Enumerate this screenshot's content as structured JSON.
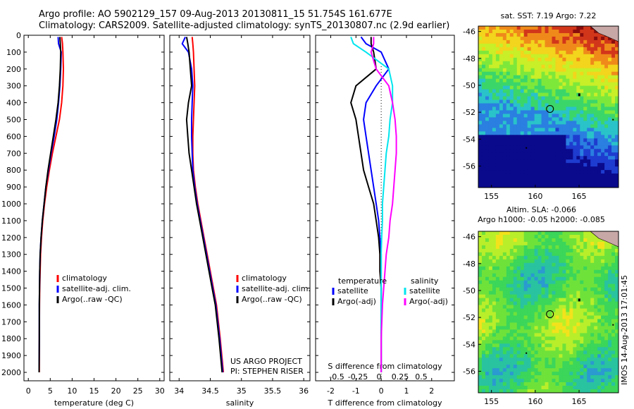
{
  "header": {
    "line1": "Argo profile: AO 5902129_157 09-Aug-2013 20130811_15 51.754S 161.677E",
    "line2": "Climatology: CARS2009. Satellite-adjusted climatology: synTS_20130807.nc (2.9d earlier)"
  },
  "colors": {
    "climatology": "#ff0000",
    "satellite": "#0000ff",
    "argo": "#000000",
    "sal_satellite": "#00e5ee",
    "sal_argo": "#ff00ff",
    "land": "#c8a7a7"
  },
  "side_text": "IMOS 14-Aug-2013 17:01:45",
  "credit": {
    "line1": "US ARGO PROJECT",
    "line2": "PI: STEPHEN RISER"
  },
  "chart_data": [
    {
      "type": "line",
      "xlabel": "temperature (deg C)",
      "ylabel": "",
      "xlim": [
        -1,
        31
      ],
      "ylim": [
        2050,
        0
      ],
      "xticks": [
        "0",
        "5",
        "10",
        "15",
        "20",
        "25",
        "30"
      ],
      "yticks": [
        "0",
        "100",
        "200",
        "300",
        "400",
        "500",
        "600",
        "700",
        "800",
        "900",
        "1000",
        "1100",
        "1200",
        "1300",
        "1400",
        "1500",
        "1600",
        "1700",
        "1800",
        "1900",
        "2000"
      ],
      "legend": [
        "climatology",
        "satellite-adj. clim.",
        "Argo(..raw -QC)"
      ],
      "series": [
        {
          "name": "climatology",
          "color": "#ff0000",
          "x": [
            7.6,
            7.8,
            7.9,
            8.0,
            7.9,
            7.6,
            7.1,
            6.3,
            5.5,
            4.8,
            4.2,
            3.7,
            3.3,
            3.0,
            2.8,
            2.7,
            2.6,
            2.55,
            2.5,
            2.5
          ],
          "y": [
            10,
            50,
            100,
            200,
            300,
            400,
            500,
            600,
            700,
            800,
            900,
            1000,
            1100,
            1200,
            1300,
            1400,
            1500,
            1600,
            1800,
            2000
          ]
        },
        {
          "name": "satellite-adj. clim.",
          "color": "#0000ff",
          "x": [
            6.8,
            6.9,
            7.5,
            7.4,
            7.2,
            6.9,
            6.5,
            5.9,
            5.2,
            4.6,
            4.0,
            3.6,
            3.2,
            2.9,
            2.7,
            2.6,
            2.55,
            2.5,
            2.5,
            2.45
          ],
          "y": [
            10,
            50,
            100,
            200,
            300,
            400,
            500,
            600,
            700,
            800,
            900,
            1000,
            1100,
            1200,
            1300,
            1400,
            1500,
            1600,
            1800,
            2000
          ]
        },
        {
          "name": "Argo(..raw -QC)",
          "color": "#000000",
          "x": [
            7.2,
            7.3,
            7.4,
            7.3,
            7.1,
            6.8,
            6.3,
            5.7,
            5.1,
            4.5,
            4.0,
            3.6,
            3.2,
            2.9,
            2.7,
            2.6,
            2.55,
            2.5,
            2.5,
            2.45
          ],
          "y": [
            10,
            50,
            100,
            200,
            300,
            400,
            500,
            600,
            700,
            800,
            900,
            1000,
            1100,
            1200,
            1300,
            1400,
            1500,
            1600,
            1800,
            2000
          ]
        }
      ]
    },
    {
      "type": "line",
      "xlabel": "salinity",
      "ylabel": "",
      "xlim": [
        33.85,
        36.1
      ],
      "ylim": [
        2050,
        0
      ],
      "xticks": [
        "34",
        "34.5",
        "35",
        "35.5",
        "36"
      ],
      "legend": [
        "climatology",
        "satellite-adj. clim.",
        "Argo(..raw -QC)"
      ],
      "series": [
        {
          "name": "climatology",
          "color": "#ff0000",
          "x": [
            34.21,
            34.22,
            34.23,
            34.24,
            34.25,
            34.24,
            34.23,
            34.22,
            34.22,
            34.23,
            34.26,
            34.3,
            34.35,
            34.4,
            34.45,
            34.5,
            34.55,
            34.6,
            34.66,
            34.71
          ],
          "y": [
            10,
            50,
            100,
            200,
            300,
            400,
            500,
            600,
            700,
            800,
            900,
            1000,
            1100,
            1200,
            1300,
            1400,
            1500,
            1600,
            1800,
            2000
          ]
        },
        {
          "name": "satellite-adj. clim.",
          "color": "#0000ff",
          "x": [
            34.1,
            34.05,
            34.15,
            34.2,
            34.22,
            34.21,
            34.2,
            34.2,
            34.21,
            34.22,
            34.25,
            34.29,
            34.34,
            34.39,
            34.44,
            34.49,
            34.54,
            34.59,
            34.65,
            34.7
          ],
          "y": [
            10,
            50,
            100,
            200,
            300,
            400,
            500,
            600,
            700,
            800,
            900,
            1000,
            1100,
            1200,
            1300,
            1400,
            1500,
            1600,
            1800,
            2000
          ]
        },
        {
          "name": "Argo(..raw -QC)",
          "color": "#000000",
          "x": [
            34.12,
            34.14,
            34.16,
            34.18,
            34.2,
            34.15,
            34.12,
            34.14,
            34.16,
            34.2,
            34.24,
            34.28,
            34.33,
            34.38,
            34.43,
            34.48,
            34.53,
            34.58,
            34.64,
            34.69
          ],
          "y": [
            10,
            50,
            100,
            200,
            300,
            400,
            500,
            600,
            700,
            800,
            900,
            1000,
            1100,
            1200,
            1300,
            1400,
            1500,
            1600,
            1800,
            2000
          ]
        }
      ]
    },
    {
      "type": "line",
      "xlabel": "T difference from climatology",
      "xlabel_top": "S difference from climatology",
      "xlim": [
        -2.6,
        2.9
      ],
      "ylim": [
        2050,
        0
      ],
      "xticks": [
        "-2",
        "-1",
        "0",
        "1",
        "2"
      ],
      "xticks_top": [
        "-0.5",
        "-0.25",
        "0",
        "0.25",
        "0.5"
      ],
      "legend_heads": [
        "temperature",
        "salinity"
      ],
      "legend": [
        "satellite",
        "Argo(-adj)",
        "satellite",
        "Argo(-adj)"
      ],
      "series": [
        {
          "name": "satellite",
          "color": "#0000ff",
          "x": [
            -0.8,
            -0.6,
            0.0,
            0.3,
            -0.2,
            -0.6,
            -0.7,
            -0.6,
            -0.5,
            -0.4,
            -0.3,
            -0.2,
            -0.1,
            -0.05,
            0.0,
            0.0,
            0.0,
            0.0,
            0.0,
            0.0
          ],
          "y": [
            10,
            50,
            100,
            200,
            300,
            400,
            500,
            600,
            700,
            800,
            900,
            1000,
            1100,
            1200,
            1300,
            1400,
            1500,
            1600,
            1800,
            2000
          ]
        },
        {
          "name": "Argo(-adj)",
          "color": "#000000",
          "x": [
            -0.4,
            -0.4,
            -0.3,
            -0.2,
            -1.0,
            -1.2,
            -1.0,
            -0.9,
            -0.8,
            -0.7,
            -0.5,
            -0.3,
            -0.2,
            -0.1,
            -0.05,
            -0.05,
            0.0,
            0.0,
            0.0,
            0.0
          ],
          "y": [
            10,
            50,
            100,
            200,
            300,
            400,
            500,
            600,
            700,
            800,
            900,
            1000,
            1100,
            1200,
            1300,
            1400,
            1500,
            1600,
            1800,
            2000
          ]
        },
        {
          "name": "satellite",
          "color": "#00e5ee",
          "x": [
            -1.2,
            -1.1,
            -0.6,
            0.3,
            0.45,
            0.45,
            0.35,
            0.3,
            0.2,
            0.15,
            0.1,
            0.05,
            0.05,
            0.02,
            0.0,
            0.0,
            0.0,
            0.0,
            0.0,
            0.0
          ],
          "y": [
            10,
            50,
            100,
            200,
            300,
            400,
            500,
            600,
            700,
            800,
            900,
            1000,
            1100,
            1200,
            1300,
            1400,
            1500,
            1600,
            1800,
            2000
          ]
        },
        {
          "name": "Argo(-adj)",
          "color": "#ff00ff",
          "x": [
            -0.3,
            -0.3,
            -0.4,
            -0.2,
            0.3,
            0.45,
            0.55,
            0.6,
            0.6,
            0.55,
            0.5,
            0.45,
            0.35,
            0.3,
            0.2,
            0.15,
            0.1,
            0.05,
            0.0,
            0.0
          ],
          "y": [
            10,
            50,
            100,
            200,
            300,
            400,
            500,
            600,
            700,
            800,
            900,
            1000,
            1100,
            1200,
            1300,
            1400,
            1500,
            1600,
            1800,
            2000
          ]
        }
      ]
    },
    {
      "type": "heatmap",
      "title": "sat. SST: 7.19 Argo: 7.22",
      "xticks": [
        "155",
        "160",
        "165"
      ],
      "yticks": [
        "-46",
        "-48",
        "-50",
        "-52",
        "-54",
        "-56"
      ],
      "xlim": [
        153.5,
        169.5
      ],
      "ylim": [
        -57.6,
        -45.6
      ],
      "marker": {
        "lon": 161.677,
        "lat": -51.754
      }
    },
    {
      "type": "heatmap",
      "title": "Altim. SLA: -0.066",
      "subtitle": "Argo h1000: -0.05 h2000: -0.085",
      "xticks": [
        "155",
        "160",
        "165"
      ],
      "yticks": [
        "-46",
        "-48",
        "-50",
        "-52",
        "-54",
        "-56"
      ],
      "xlim": [
        153.5,
        169.5
      ],
      "ylim": [
        -57.6,
        -45.6
      ],
      "marker": {
        "lon": 161.677,
        "lat": -51.754
      }
    }
  ]
}
